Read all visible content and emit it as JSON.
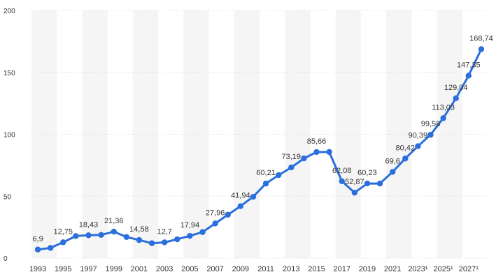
{
  "chart_data": {
    "type": "line",
    "title": "",
    "xlabel": "",
    "ylabel": "",
    "ylim": [
      0,
      200
    ],
    "yticks": [
      "0",
      "50",
      "100",
      "150",
      "200"
    ],
    "grid": true,
    "line_color": "#2a6fdb",
    "x": [
      "1993",
      "1994",
      "1995",
      "1996",
      "1997",
      "1998",
      "1999",
      "2000",
      "2001",
      "2002",
      "2003",
      "2004",
      "2005",
      "2006",
      "2007",
      "2008",
      "2009",
      "2010",
      "2011",
      "2012",
      "2013",
      "2014",
      "2015",
      "2016",
      "2017",
      "2018",
      "2019",
      "2020",
      "2021",
      "2022",
      "2023¹",
      "2024¹",
      "2025¹",
      "2026¹",
      "2027¹",
      "2028¹"
    ],
    "x_tick_labels": [
      "1993",
      "1995",
      "1997",
      "1999",
      "2001",
      "2003",
      "2005",
      "2007",
      "2009",
      "2011",
      "2013",
      "2015",
      "2017",
      "2019",
      "2021",
      "2023¹",
      "2025¹",
      "2027¹"
    ],
    "values": [
      6.9,
      8.2,
      12.75,
      17.8,
      18.43,
      18.7,
      21.36,
      17.0,
      14.58,
      12.0,
      12.7,
      15.2,
      17.94,
      21.0,
      27.96,
      35.0,
      41.94,
      49.5,
      60.21,
      67.0,
      73.19,
      80.5,
      85.66,
      85.7,
      62.08,
      52.87,
      60.23,
      60.2,
      69.6,
      80.42,
      90.39,
      99.58,
      113.03,
      129.04,
      147.35,
      168.74
    ],
    "data_labels": [
      "6,9",
      "",
      "12,75",
      "",
      "18,43",
      "",
      "21,36",
      "",
      "14,58",
      "",
      "12,7",
      "",
      "17,94",
      "",
      "27,96",
      "",
      "41,94",
      "",
      "60,21",
      "",
      "73,19",
      "",
      "85,66",
      "",
      "62,08",
      "52,87",
      "60,23",
      "",
      "69,6",
      "80,42",
      "90,39",
      "99,58",
      "113,03",
      "129,04",
      "147,35",
      "168,74"
    ]
  }
}
